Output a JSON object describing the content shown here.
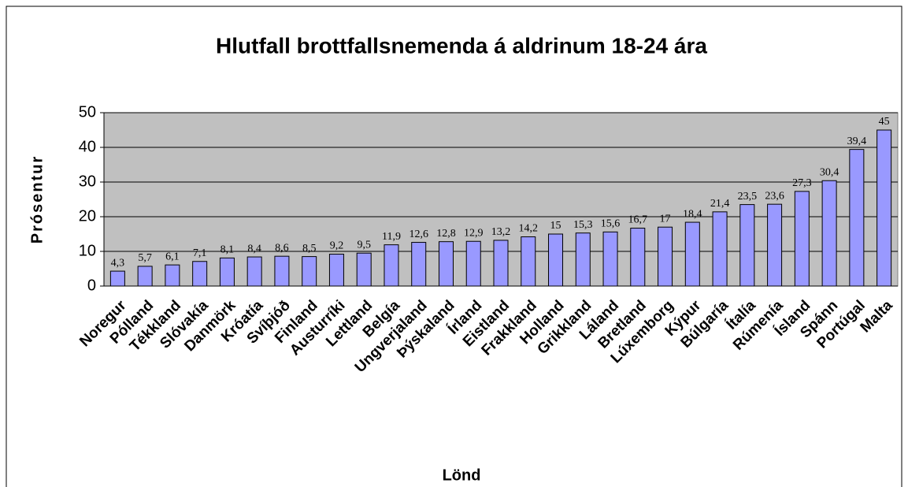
{
  "chart_data": {
    "type": "bar",
    "title": "Hlutfall brottfallsnemenda á aldrinum 18-24 ára",
    "x_label": "Lönd",
    "y_label": "Prósentur",
    "categories": [
      "Noregur",
      "Pólland",
      "Tékkland",
      "Slóvakía",
      "Danmörk",
      "Króatía",
      "Svíþjóð",
      "Finland",
      "Austurríki",
      "Lettland",
      "Belgía",
      "Ungverjaland",
      "Þýskaland",
      "Írland",
      "Eistland",
      "Frakkland",
      "Holland",
      "Grikkland",
      "Láland",
      "Bretland",
      "Lúxemborg",
      "Kýpur",
      "Búlgaría",
      "Ítalía",
      "Rúmenía",
      "Ísland",
      "Spánn",
      "Portúgal",
      "Malta"
    ],
    "values": [
      4.3,
      5.7,
      6.1,
      7.1,
      8.1,
      8.4,
      8.6,
      8.5,
      9.2,
      9.5,
      11.9,
      12.6,
      12.8,
      12.9,
      13.2,
      14.2,
      15,
      15.3,
      15.6,
      16.7,
      17,
      18.4,
      21.4,
      23.5,
      23.6,
      27.3,
      30.4,
      39.4,
      45
    ],
    "value_labels": [
      "4,3",
      "5,7",
      "6,1",
      "7,1",
      "8,1",
      "8,4",
      "8,6",
      "8,5",
      "9,2",
      "9,5",
      "11,9",
      "12,6",
      "12,8",
      "12,9",
      "13,2",
      "14,2",
      "15",
      "15,3",
      "15,6",
      "16,7",
      "17",
      "18,4",
      "21,4",
      "23,5",
      "23,6",
      "27,3",
      "30,4",
      "39,4",
      "45"
    ],
    "color": "#9999ff",
    "ylim": [
      0,
      50
    ],
    "yticks": [
      0,
      10,
      20,
      30,
      40,
      50
    ],
    "grid": true
  }
}
